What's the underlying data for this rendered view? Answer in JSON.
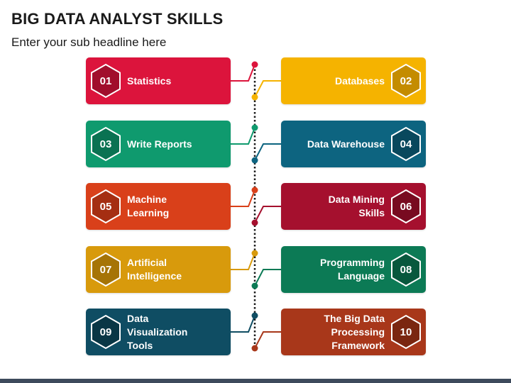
{
  "title": "BIG DATA ANALYST SKILLS",
  "subtitle": "Enter your sub headline here",
  "items": [
    {
      "num": "01",
      "label": "Statistics",
      "color": "#dc143c",
      "dark": "#a10e2c"
    },
    {
      "num": "02",
      "label": "Databases",
      "color": "#f5b300",
      "dark": "#c48c00"
    },
    {
      "num": "03",
      "label": "Write Reports",
      "color": "#0f9a6e",
      "dark": "#0a7252"
    },
    {
      "num": "04",
      "label": "Data Warehouse",
      "color": "#0d6480",
      "dark": "#09485d"
    },
    {
      "num": "05",
      "label": "Machine\nLearning",
      "color": "#d9401a",
      "dark": "#a52e12"
    },
    {
      "num": "06",
      "label": "Data Mining\nSkills",
      "color": "#a5102e",
      "dark": "#780a20"
    },
    {
      "num": "07",
      "label": "Artificial\nIntelligence",
      "color": "#d89a0c",
      "dark": "#a67406"
    },
    {
      "num": "08",
      "label": "Programming\nLanguage",
      "color": "#0c7a55",
      "dark": "#08583d"
    },
    {
      "num": "09",
      "label": "Data\nVisualization\nTools",
      "color": "#0f4d63",
      "dark": "#093645"
    },
    {
      "num": "10",
      "label": "The Big Data\nProcessing\nFramework",
      "color": "#a8371a",
      "dark": "#7a2610"
    }
  ],
  "timeline_color": "#1a1a1a",
  "bar_color": "#3d4a5c"
}
